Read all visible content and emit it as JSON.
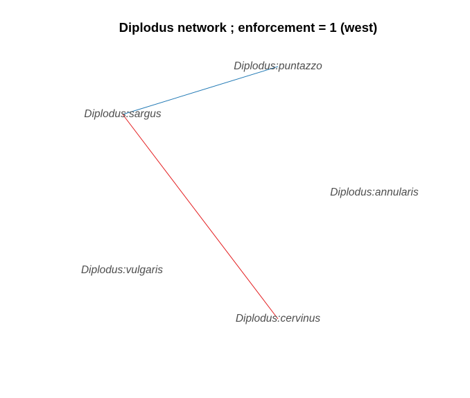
{
  "title": "Diplodus network ; enforcement = 1 (west)",
  "nodes": [
    {
      "id": "puntazzo",
      "label": "Diplodus:puntazzo"
    },
    {
      "id": "sargus",
      "label": "Diplodus:sargus"
    },
    {
      "id": "annularis",
      "label": "Diplodus:annularis"
    },
    {
      "id": "vulgaris",
      "label": "Diplodus:vulgaris"
    },
    {
      "id": "cervinus",
      "label": "Diplodus:cervinus"
    }
  ],
  "edges": [
    {
      "from": "sargus",
      "to": "puntazzo",
      "color": "#1f78b4"
    },
    {
      "from": "sargus",
      "to": "cervinus",
      "color": "#e31a1c"
    }
  ]
}
